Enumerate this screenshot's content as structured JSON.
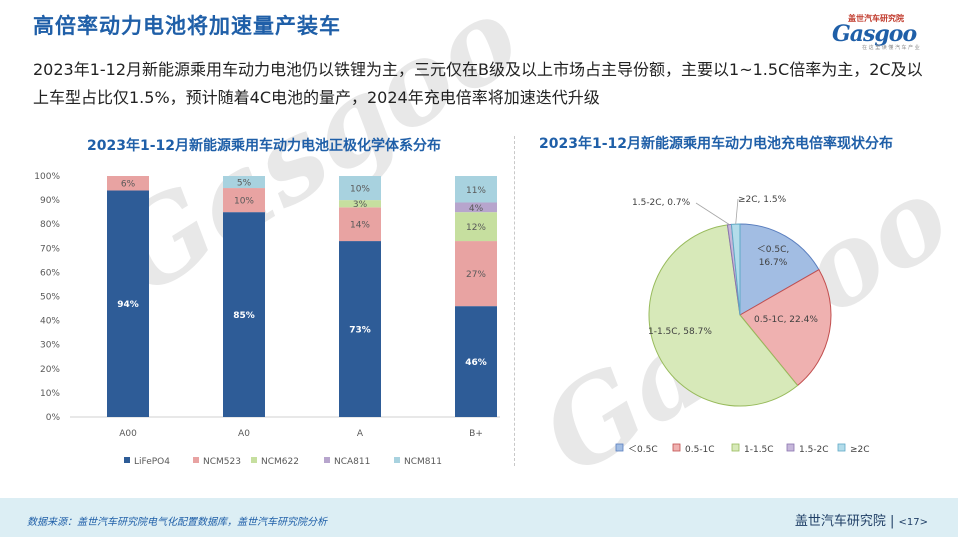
{
  "header": {
    "title": "高倍率动力电池将加速量产装车",
    "logo_cn": "盖世汽车研究院",
    "logo_en": "Gasgoo",
    "logo_sub": "在 这 里 读 懂 汽 车 产 业"
  },
  "summary": "2023年1-12月新能源乘用车动力电池仍以铁锂为主，三元仅在B级及以上市场占主导份额，主要以1~1.5C倍率为主，2C及以上车型占比仅1.5%，预计随着4C电池的量产，2024年充电倍率将加速迭代升级",
  "chart_data": [
    {
      "type": "bar",
      "stacked": true,
      "title": "2023年1-12月新能源乘用车动力电池正极化学体系分布",
      "categories": [
        "A00",
        "A0",
        "A",
        "B+"
      ],
      "series": [
        {
          "name": "LiFePO4",
          "color": "#2e5c97",
          "values": [
            94,
            85,
            73,
            46
          ],
          "labels": [
            "94%",
            "85%",
            "73%",
            "46%"
          ]
        },
        {
          "name": "NCM523",
          "color": "#e8a3a2",
          "values": [
            6,
            10,
            14,
            27
          ],
          "labels": [
            "6%",
            "10%",
            "14%",
            "27%"
          ]
        },
        {
          "name": "NCM622",
          "color": "#c6df9f",
          "values": [
            0,
            0,
            3,
            12
          ],
          "labels": [
            "",
            "",
            "3%",
            "12%"
          ]
        },
        {
          "name": "NCA811",
          "color": "#b7a5cd",
          "values": [
            0,
            0,
            0,
            4
          ],
          "labels": [
            "",
            "",
            "",
            "4%"
          ]
        },
        {
          "name": "NCM811",
          "color": "#a8d2df",
          "values": [
            0,
            5,
            10,
            11
          ],
          "labels": [
            "",
            "5%",
            "10%",
            "11%"
          ]
        }
      ],
      "yticks": [
        "0%",
        "10%",
        "20%",
        "30%",
        "40%",
        "50%",
        "60%",
        "70%",
        "80%",
        "90%",
        "100%"
      ],
      "ylim": [
        0,
        100
      ],
      "legend_position": "bottom",
      "grid": false
    },
    {
      "type": "pie",
      "title": "2023年1-12月新能源乘用车动力电池充电倍率现状分布",
      "slices": [
        {
          "name": "＜0.5C",
          "value": 16.7,
          "color": "#a2bde3",
          "stroke": "#5b7fbf",
          "label": "＜0.5C,\n16.7%"
        },
        {
          "name": "0.5-1C",
          "value": 22.4,
          "color": "#efb1b0",
          "stroke": "#c24f4f",
          "label": "0.5-1C, 22.4%"
        },
        {
          "name": "1-1.5C",
          "value": 58.7,
          "color": "#d7e9b9",
          "stroke": "#98bb5c",
          "label": "1-1.5C, 58.7%"
        },
        {
          "name": "1.5-2C",
          "value": 0.7,
          "color": "#c6b7da",
          "stroke": "#8a74b0",
          "label": "1.5-2C, 0.7%"
        },
        {
          "name": "≥2C",
          "value": 1.5,
          "color": "#b3dcea",
          "stroke": "#5fa9c6",
          "label": "≥2C, 1.5%"
        }
      ],
      "legend_position": "bottom"
    }
  ],
  "footer": {
    "source": "数据来源：盖世汽车研究院电气化配置数据库，盖世汽车研究院分析",
    "org": "盖世汽车研究院",
    "page": "<17>"
  }
}
